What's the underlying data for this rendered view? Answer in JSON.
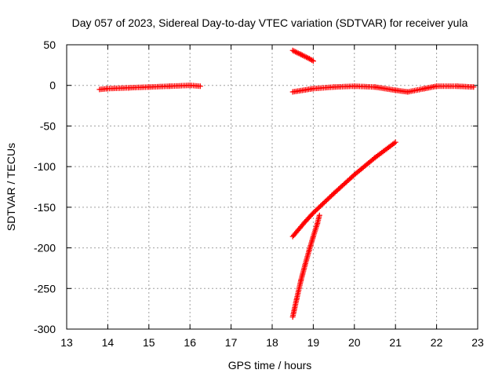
{
  "chart_data": {
    "type": "scatter",
    "title": "Day 057 of 2023, Sidereal Day-to-day VTEC variation (SDTVAR) for receiver yula",
    "xlabel": "GPS time / hours",
    "ylabel": "SDTVAR / TECUs",
    "xlim": [
      13,
      23
    ],
    "ylim": [
      -300,
      50
    ],
    "grid": true,
    "x_ticks": [
      "13",
      "14",
      "15",
      "16",
      "17",
      "18",
      "19",
      "20",
      "21",
      "22",
      "23"
    ],
    "y_ticks": [
      "-300",
      "-250",
      "-200",
      "-150",
      "-100",
      "-50",
      "0",
      "50"
    ],
    "marker": "plus",
    "series_color": "#ff0000",
    "tracks": [
      {
        "x": [
          13.8,
          14.0,
          14.5,
          15.0,
          15.5,
          16.0,
          16.25
        ],
        "y": [
          -5,
          -4,
          -3,
          -2,
          -1,
          0,
          -1
        ]
      },
      {
        "x": [
          18.5,
          18.7,
          18.9,
          19.0
        ],
        "y": [
          43,
          38,
          33,
          30
        ]
      },
      {
        "x": [
          18.5,
          19.0,
          19.5,
          20.0,
          20.5,
          21.0,
          21.3,
          21.7,
          22.0,
          22.5,
          22.9
        ],
        "y": [
          -8,
          -4,
          -2,
          -1,
          -2,
          -6,
          -8,
          -4,
          -1,
          -1,
          -2
        ]
      },
      {
        "x": [
          18.5,
          18.8,
          19.0,
          19.5,
          20.0,
          20.5,
          21.0
        ],
        "y": [
          -186,
          -168,
          -157,
          -133,
          -110,
          -89,
          -70
        ]
      },
      {
        "x": [
          18.5,
          18.6,
          18.7,
          18.8,
          18.9,
          19.0,
          19.1,
          19.15
        ],
        "y": [
          -285,
          -262,
          -240,
          -221,
          -203,
          -186,
          -170,
          -160
        ]
      }
    ]
  }
}
